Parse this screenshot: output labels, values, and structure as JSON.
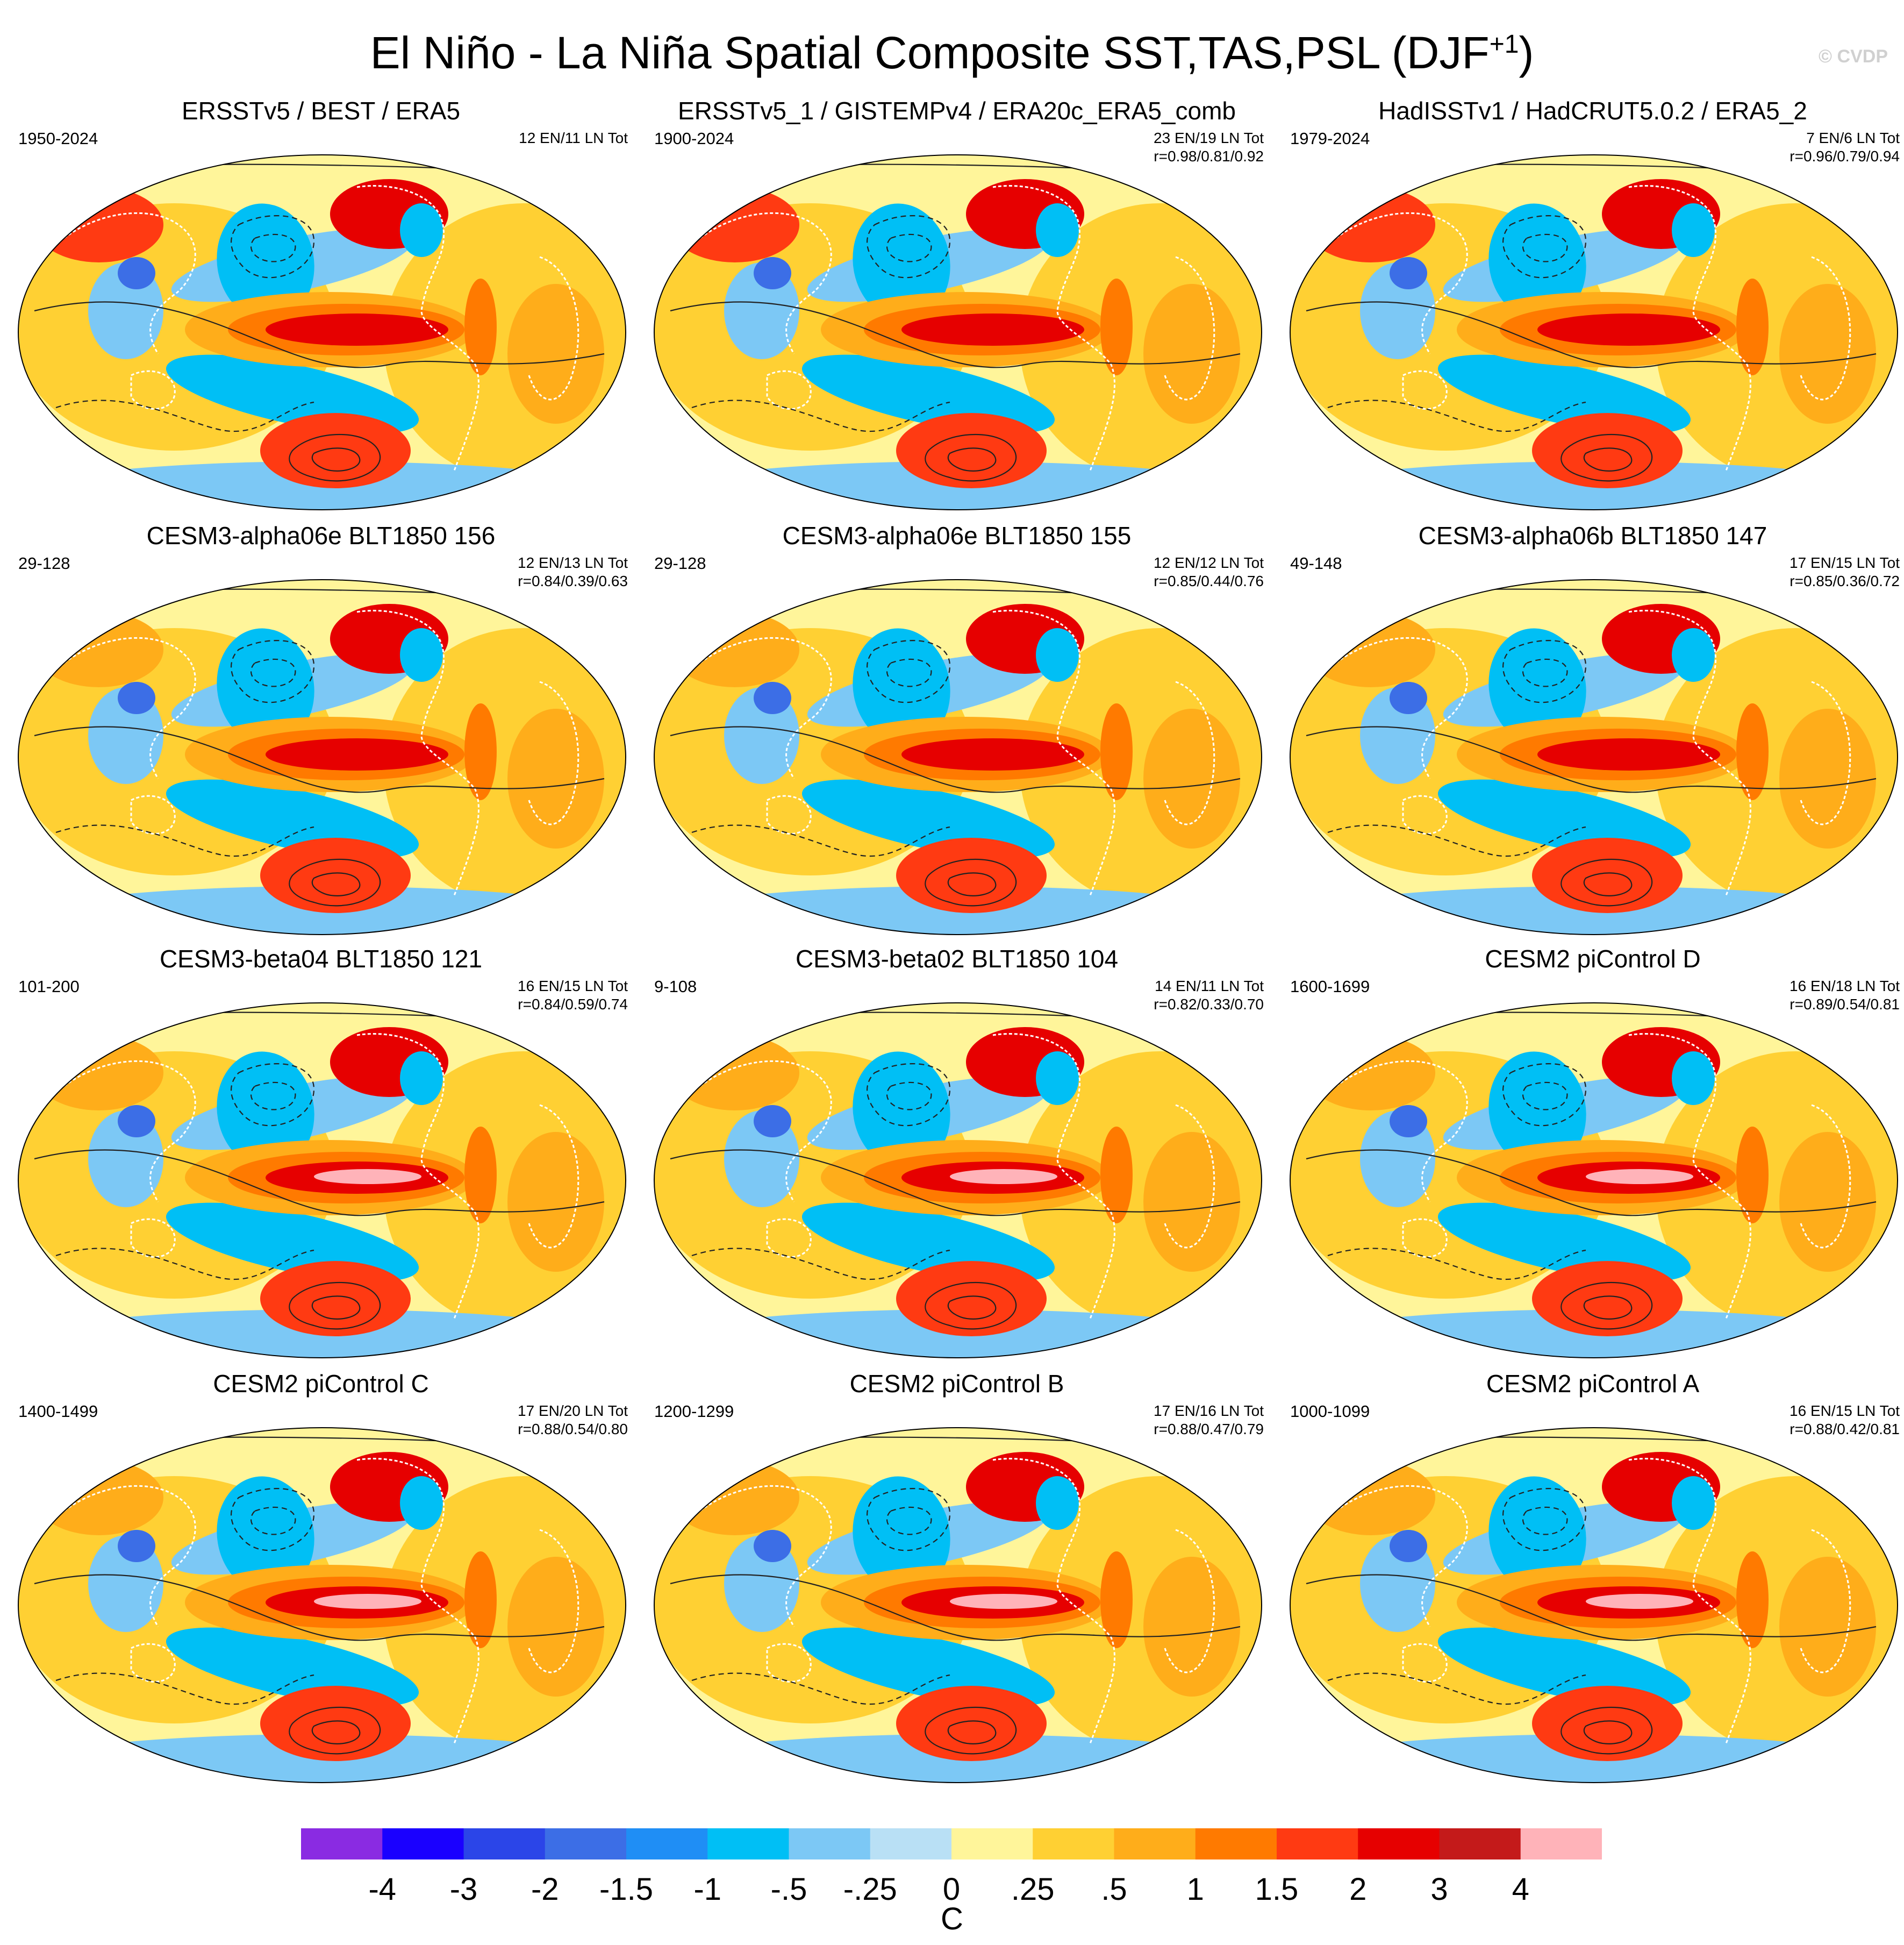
{
  "figure": {
    "title_main": "El Niño - La Niña Spatial Composite SST,TAS,PSL (DJF",
    "title_sup": "+1",
    "title_close": ")",
    "watermark": "© CVDP"
  },
  "panels": [
    {
      "title": "ERSSTv5 / BEST / ERA5",
      "years": "1950-2024",
      "counts": "12 EN/11 LN Tot",
      "corr": ""
    },
    {
      "title": "ERSSTv5_1 / GISTEMPv4 / ERA20c_ERA5_comb",
      "years": "1900-2024",
      "counts": "23 EN/19 LN Tot",
      "corr": "r=0.98/0.81/0.92"
    },
    {
      "title": "HadISSTv1 / HadCRUT5.0.2 / ERA5_2",
      "years": "1979-2024",
      "counts": "7 EN/6 LN Tot",
      "corr": "r=0.96/0.79/0.94"
    },
    {
      "title": "CESM3-alpha06e BLT1850 156",
      "years": "29-128",
      "counts": "12 EN/13 LN Tot",
      "corr": "r=0.84/0.39/0.63"
    },
    {
      "title": "CESM3-alpha06e BLT1850 155",
      "years": "29-128",
      "counts": "12 EN/12 LN Tot",
      "corr": "r=0.85/0.44/0.76"
    },
    {
      "title": "CESM3-alpha06b BLT1850 147",
      "years": "49-148",
      "counts": "17 EN/15 LN Tot",
      "corr": "r=0.85/0.36/0.72"
    },
    {
      "title": "CESM3-beta04 BLT1850 121",
      "years": "101-200",
      "counts": "16 EN/15 LN Tot",
      "corr": "r=0.84/0.59/0.74"
    },
    {
      "title": "CESM3-beta02 BLT1850 104",
      "years": "9-108",
      "counts": "14 EN/11 LN Tot",
      "corr": "r=0.82/0.33/0.70"
    },
    {
      "title": "CESM2 piControl D",
      "years": "1600-1699",
      "counts": "16 EN/18 LN Tot",
      "corr": "r=0.89/0.54/0.81"
    },
    {
      "title": "CESM2 piControl C",
      "years": "1400-1499",
      "counts": "17 EN/20 LN Tot",
      "corr": "r=0.88/0.54/0.80"
    },
    {
      "title": "CESM2 piControl B",
      "years": "1200-1299",
      "counts": "17 EN/16 LN Tot",
      "corr": "r=0.88/0.47/0.79"
    },
    {
      "title": "CESM2 piControl A",
      "years": "1000-1099",
      "counts": "16 EN/15 LN Tot",
      "corr": "r=0.88/0.42/0.81"
    }
  ],
  "colorbar": {
    "colors": [
      "#8a2be2",
      "#1a00ff",
      "#2b45e8",
      "#3c6ee6",
      "#1f8ef5",
      "#00bff5",
      "#7cc8f5",
      "#b9e0f5",
      "#fff59a",
      "#ffd033",
      "#ffad1a",
      "#ff7a00",
      "#ff3a12",
      "#e60000",
      "#c41a1a",
      "#ffb3b9"
    ],
    "labels": [
      "-4",
      "-3",
      "-2",
      "-1.5",
      "-1",
      "-.5",
      "-.25",
      "0",
      ".25",
      ".5",
      "1",
      "1.5",
      "2",
      "3",
      "4"
    ],
    "units": "C"
  }
}
